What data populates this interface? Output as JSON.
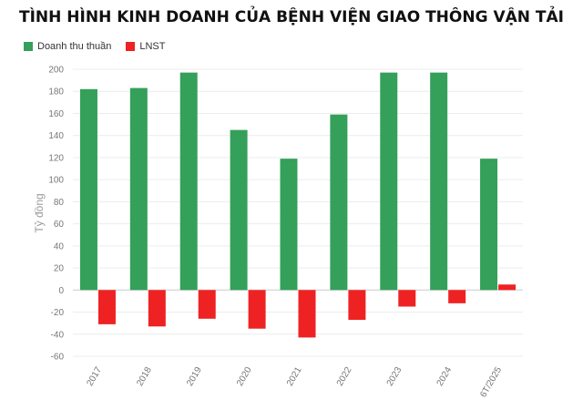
{
  "chart_data": {
    "type": "bar",
    "title": "TÌNH HÌNH KINH DOANH CỦA BỆNH VIỆN GIAO THÔNG VẬN TẢI",
    "ylabel": "Tỷ đồng",
    "xlabel": "",
    "ylim": [
      -60,
      200
    ],
    "yticks": [
      -60,
      -40,
      -20,
      0,
      20,
      40,
      60,
      80,
      100,
      120,
      140,
      160,
      180,
      200
    ],
    "legend_position": "top-left",
    "grid": true,
    "categories": [
      "2017",
      "2018",
      "2019",
      "2020",
      "2021",
      "2022",
      "2023",
      "2024",
      "6T/2025"
    ],
    "series": [
      {
        "name": "Doanh thu thuần",
        "color": "#34a05a",
        "values": [
          182,
          183,
          197,
          145,
          119,
          159,
          197,
          197,
          119
        ]
      },
      {
        "name": "LNST",
        "color": "#ee2222",
        "values": [
          -31,
          -33,
          -26,
          -35,
          -43,
          -27,
          -15,
          -12,
          5
        ]
      }
    ]
  }
}
